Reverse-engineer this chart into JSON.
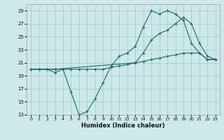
{
  "xlabel": "Humidex (Indice chaleur)",
  "ylabel": "",
  "bg_color": "#cde8e8",
  "grid_color": "#b0d0d0",
  "line_color": "#1a6b6b",
  "xlim": [
    -0.5,
    23.5
  ],
  "ylim": [
    13,
    30
  ],
  "yticks": [
    13,
    15,
    17,
    19,
    21,
    23,
    25,
    27,
    29
  ],
  "xticks": [
    0,
    1,
    2,
    3,
    4,
    5,
    6,
    7,
    8,
    9,
    10,
    11,
    12,
    13,
    14,
    15,
    16,
    17,
    18,
    19,
    20,
    21,
    22,
    23
  ],
  "line1_x": [
    0,
    1,
    2,
    3,
    4,
    5,
    6,
    7,
    8,
    9,
    10,
    11,
    12,
    13,
    14,
    15,
    16,
    17,
    18,
    19,
    20,
    21,
    22,
    23
  ],
  "line1_y": [
    20,
    20,
    20,
    19.5,
    20,
    16.5,
    13,
    13.5,
    15.5,
    18,
    20.5,
    22.0,
    22.5,
    23.5,
    26.5,
    29,
    28.5,
    29,
    28.5,
    27.5,
    24,
    22.5,
    21.5,
    21.5
  ],
  "line2_x": [
    0,
    3,
    13,
    14,
    15,
    16,
    17,
    18,
    19,
    20,
    21,
    22,
    23
  ],
  "line2_y": [
    20,
    20,
    21,
    22.5,
    24.5,
    25.5,
    26,
    27,
    28,
    27,
    24,
    22,
    21.5
  ],
  "line3_x": [
    0,
    1,
    2,
    3,
    4,
    5,
    6,
    7,
    8,
    9,
    10,
    11,
    12,
    13,
    14,
    15,
    16,
    17,
    18,
    19,
    20,
    21,
    22,
    23
  ],
  "line3_y": [
    20,
    20,
    20,
    20,
    20,
    20,
    20,
    20,
    20,
    20,
    20.3,
    20.5,
    20.7,
    21.0,
    21.2,
    21.5,
    21.7,
    22.0,
    22.2,
    22.5,
    22.5,
    22.5,
    21.5,
    21.5
  ]
}
